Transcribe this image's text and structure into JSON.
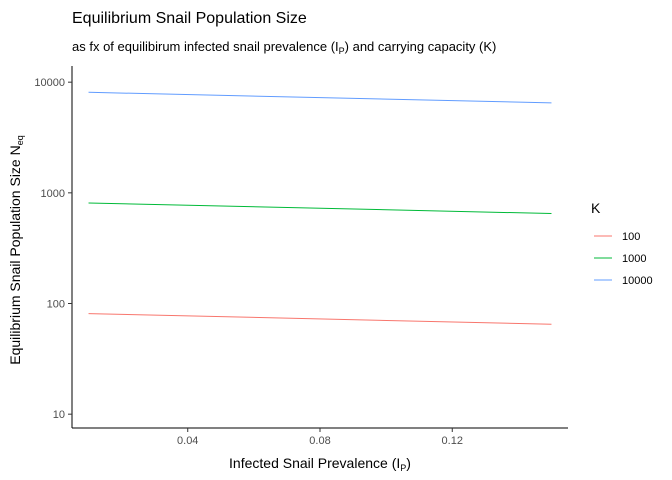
{
  "chart_data": {
    "type": "line",
    "title": "Equilibrium Snail Population Size",
    "subtitle": {
      "pre": "as fx of equilibirum infected snail prevalence (I",
      "sub": "P",
      "post": ") and carrying capacity (K)"
    },
    "xlabel": {
      "pre": "Infected Snail Prevalence (I",
      "sub": "P",
      "post": ")"
    },
    "ylabel": {
      "pre": "Equilibrium Snail Population Size N",
      "sub": "eq",
      "post": ""
    },
    "xlim": [
      0.005,
      0.155
    ],
    "ylim": [
      7.5,
      14000
    ],
    "yscale": "log10",
    "x_ticks": [
      0.04,
      0.08,
      0.12
    ],
    "x_tick_labels": [
      "0.04",
      "0.08",
      "0.12"
    ],
    "y_ticks": [
      10,
      100,
      1000,
      10000
    ],
    "y_tick_labels": [
      "10",
      "100",
      "1000",
      "10000"
    ],
    "grid": false,
    "legend": {
      "title": "K",
      "position": "right"
    },
    "series": [
      {
        "name": "100",
        "color": "#F8766D",
        "x": [
          0.01,
          0.15
        ],
        "y": [
          81,
          65
        ]
      },
      {
        "name": "1000",
        "color": "#00BA38",
        "x": [
          0.01,
          0.15
        ],
        "y": [
          810,
          650
        ]
      },
      {
        "name": "10000",
        "color": "#619CFF",
        "x": [
          0.01,
          0.15
        ],
        "y": [
          8100,
          6500
        ]
      }
    ]
  }
}
